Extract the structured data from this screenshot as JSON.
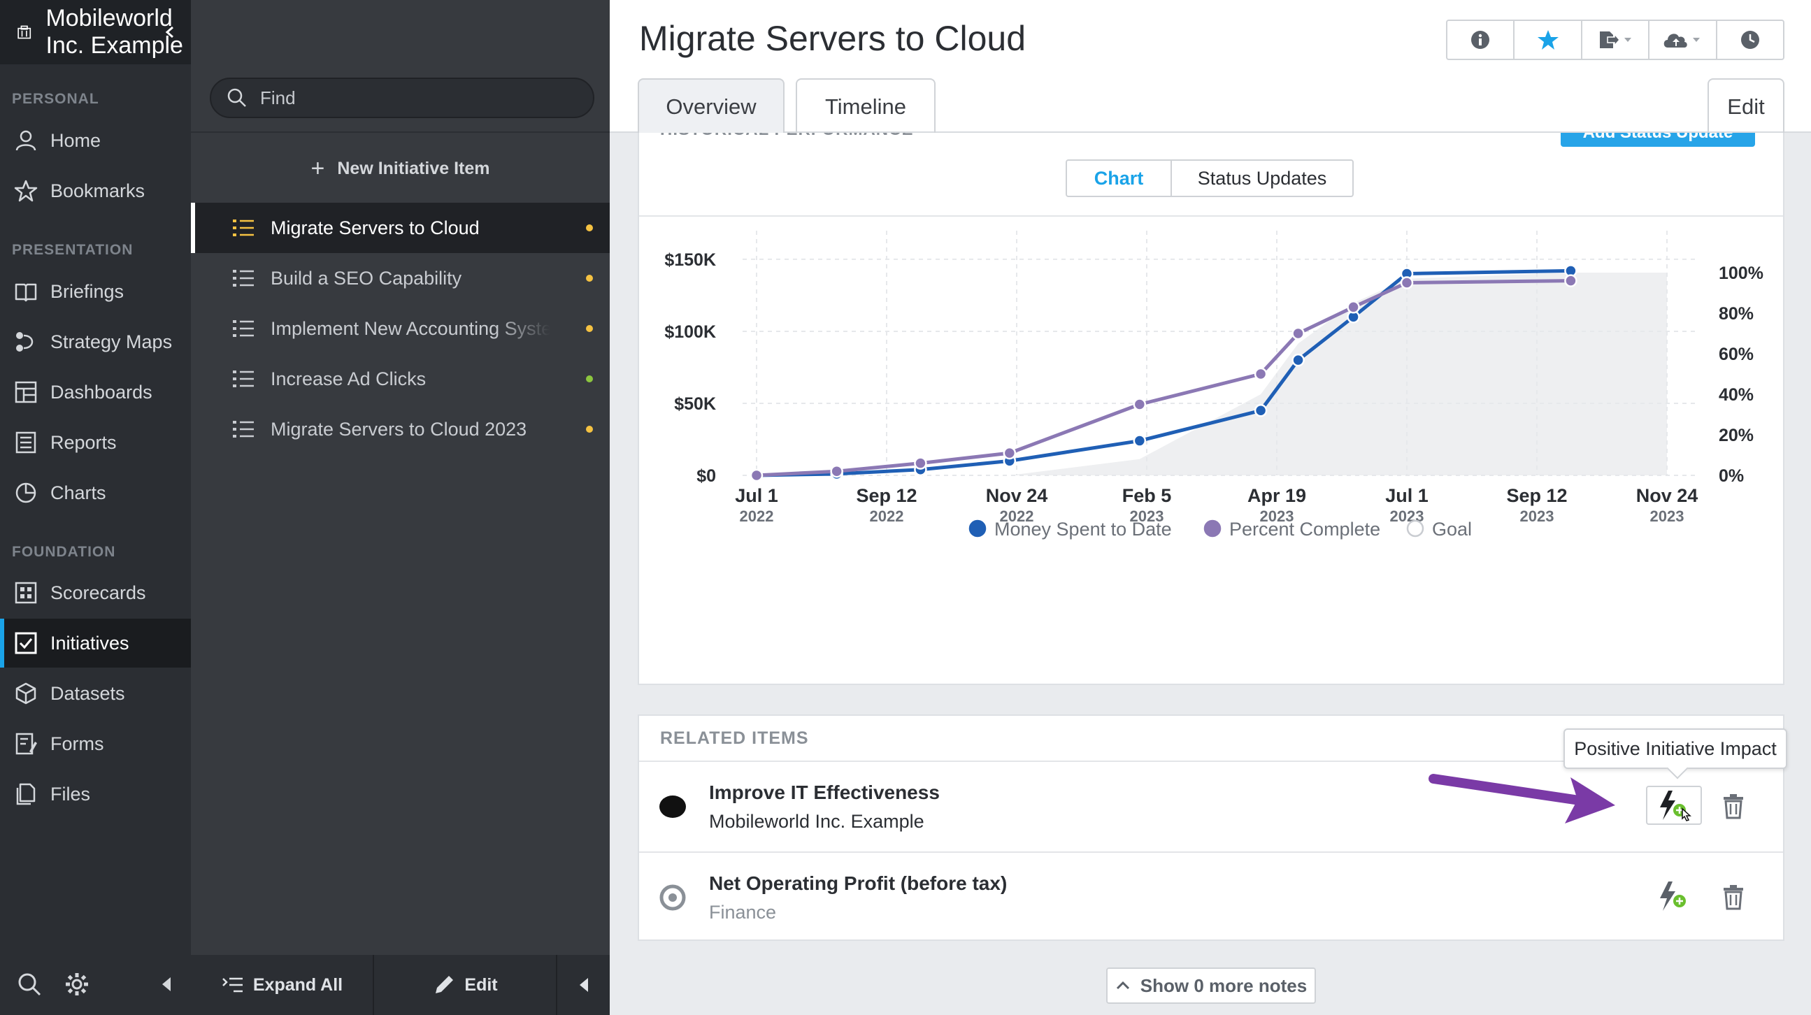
{
  "nav": {
    "org_name": "Mobileworld Inc. Example",
    "sections": {
      "personal": "PERSONAL",
      "presentation": "PRESENTATION",
      "foundation": "FOUNDATION"
    },
    "items": {
      "home": "Home",
      "bookmarks": "Bookmarks",
      "briefings": "Briefings",
      "strategy_maps": "Strategy Maps",
      "dashboards": "Dashboards",
      "reports": "Reports",
      "charts": "Charts",
      "scorecards": "Scorecards",
      "initiatives": "Initiatives",
      "datasets": "Datasets",
      "forms": "Forms",
      "files": "Files"
    },
    "active": "initiatives"
  },
  "list": {
    "search_placeholder": "Find",
    "new_item_label": "New Initiative Item",
    "items": [
      {
        "label": "Migrate Servers to Cloud",
        "status_color": "#f5c242",
        "active": true
      },
      {
        "label": "Build a SEO Capability",
        "status_color": "#f5c242",
        "active": false
      },
      {
        "label": "Implement New Accounting System",
        "status_color": "#f5c242",
        "active": false
      },
      {
        "label": "Increase Ad Clicks",
        "status_color": "#8cc63f",
        "active": false
      },
      {
        "label": "Migrate Servers to Cloud 2023",
        "status_color": "#f5c242",
        "active": false
      }
    ],
    "footer": {
      "expand_all": "Expand All",
      "edit": "Edit"
    }
  },
  "main": {
    "title": "Migrate Servers to Cloud",
    "tabs": [
      "Overview",
      "Timeline"
    ],
    "active_tab": "Overview",
    "edit_label": "Edit",
    "historical_label": "HISTORICAL PERFORMANCE",
    "add_status_label": "Add Status Update",
    "segments": [
      "Chart",
      "Status Updates"
    ],
    "active_segment": "Chart",
    "related_label": "RELATED ITEMS",
    "related": [
      {
        "name": "Improve IT Effectiveness",
        "sub": "Mobileworld Inc. Example",
        "sub_color": "#2b2e33",
        "state": "filled"
      },
      {
        "name": "Net Operating Profit (before tax)",
        "sub": "Finance",
        "sub_color": "#8a9097",
        "state": "ring"
      }
    ],
    "tooltip": "Positive Initiative Impact",
    "show_more": "Show 0 more notes"
  },
  "chart_data": {
    "type": "line",
    "x": [
      "2022-07-01",
      "2022-08-15",
      "2022-10-01",
      "2022-11-20",
      "2023-02-01",
      "2023-04-10",
      "2023-05-01",
      "2023-06-01",
      "2023-07-01",
      "2023-10-01"
    ],
    "x_ticks": [
      {
        "label": "Jul 1",
        "year": "2022",
        "date": "2022-07-01"
      },
      {
        "label": "Sep 12",
        "year": "2022",
        "date": "2022-09-12"
      },
      {
        "label": "Nov 24",
        "year": "2022",
        "date": "2022-11-24"
      },
      {
        "label": "Feb 5",
        "year": "2023",
        "date": "2023-02-05"
      },
      {
        "label": "Apr 19",
        "year": "2023",
        "date": "2023-04-19"
      },
      {
        "label": "Jul 1",
        "year": "2023",
        "date": "2023-07-01"
      },
      {
        "label": "Sep 12",
        "year": "2023",
        "date": "2023-09-12"
      },
      {
        "label": "Nov 24",
        "year": "2023",
        "date": "2023-11-24"
      }
    ],
    "y_left": {
      "ticks": [
        "$0",
        "$50K",
        "$100K",
        "$150K"
      ],
      "tick_values": [
        0,
        50000,
        100000,
        150000
      ],
      "range": [
        0,
        165000
      ]
    },
    "y_right": {
      "ticks": [
        "0%",
        "20%",
        "40%",
        "60%",
        "80%",
        "100%"
      ],
      "tick_values": [
        0,
        20,
        40,
        60,
        80,
        100
      ],
      "range": [
        0,
        100
      ]
    },
    "series": [
      {
        "name": "Money Spent to Date",
        "axis": "left",
        "color": "#1f5fb5",
        "values": [
          0,
          1000,
          4000,
          10000,
          24000,
          45000,
          80000,
          110000,
          140000,
          142000
        ]
      },
      {
        "name": "Percent Complete",
        "axis": "right",
        "color": "#8b78b4",
        "values": [
          0,
          2,
          6,
          11,
          35,
          50,
          70,
          83,
          95,
          96
        ]
      },
      {
        "name": "Goal",
        "axis": "right",
        "color": "#eeeff1",
        "style": "area",
        "values": [
          0,
          0,
          0,
          0,
          8,
          40,
          65,
          85,
          97,
          100
        ]
      }
    ],
    "legend_position": "bottom",
    "grid": true
  }
}
